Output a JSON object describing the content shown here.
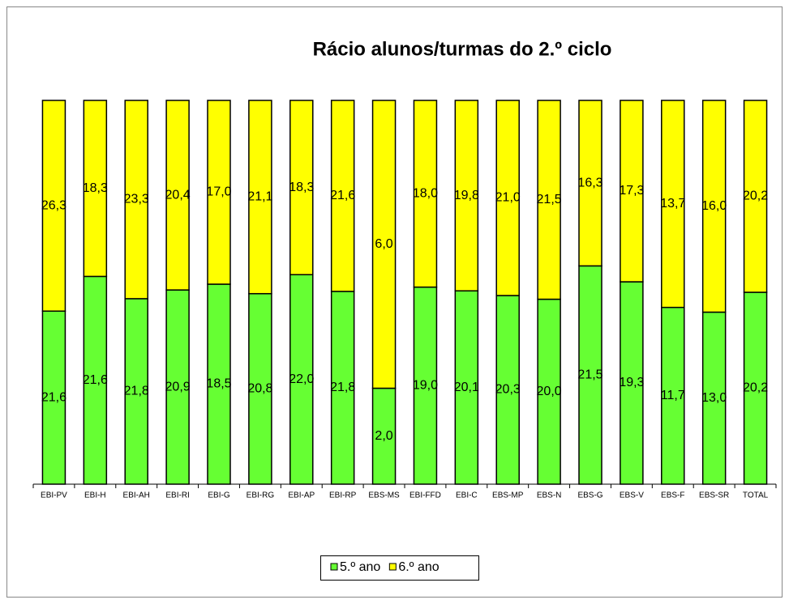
{
  "chart_data": {
    "type": "bar",
    "stacking": "percent",
    "title": "Rácio alunos/turmas do 2.º ciclo",
    "categories": [
      "EBI-PV",
      "EBI-H",
      "EBI-AH",
      "EBI-RI",
      "EBI-G",
      "EBI-RG",
      "EBI-AP",
      "EBI-RP",
      "EBS-MS",
      "EBI-FFD",
      "EBI-C",
      "EBS-MP",
      "EBS-N",
      "EBS-G",
      "EBS-V",
      "EBS-F",
      "EBS-SR",
      "TOTAL"
    ],
    "series": [
      {
        "name": "5.º ano",
        "color": "#66ff33",
        "values": [
          21.6,
          21.6,
          21.8,
          20.9,
          18.5,
          20.8,
          22.0,
          21.8,
          2.0,
          19.0,
          20.1,
          20.3,
          20.0,
          21.5,
          19.3,
          11.7,
          13.0,
          20.2
        ],
        "value_labels": [
          "21,6",
          "21,6",
          "21,8",
          "20,9",
          "18,5",
          "20,8",
          "22,0",
          "21,8",
          "2,0",
          "19,0",
          "20,1",
          "20,3",
          "20,0",
          "21,5",
          "19,3",
          "11,7",
          "13,0",
          "20,2"
        ]
      },
      {
        "name": "6.º ano",
        "color": "#ffff00",
        "values": [
          26.3,
          18.3,
          23.3,
          20.4,
          17.0,
          21.1,
          18.3,
          21.6,
          6.0,
          18.0,
          19.8,
          21.0,
          21.5,
          16.3,
          17.3,
          13.7,
          16.0,
          20.2
        ],
        "value_labels": [
          "26,3",
          "18,3",
          "23,3",
          "20,4",
          "17,0",
          "21,1",
          "18,3",
          "21,6",
          "6,0",
          "18,0",
          "19,8",
          "21,0",
          "21,5",
          "16,3",
          "17,3",
          "13,7",
          "16,0",
          "20,2"
        ]
      }
    ],
    "legend": "bottom"
  }
}
